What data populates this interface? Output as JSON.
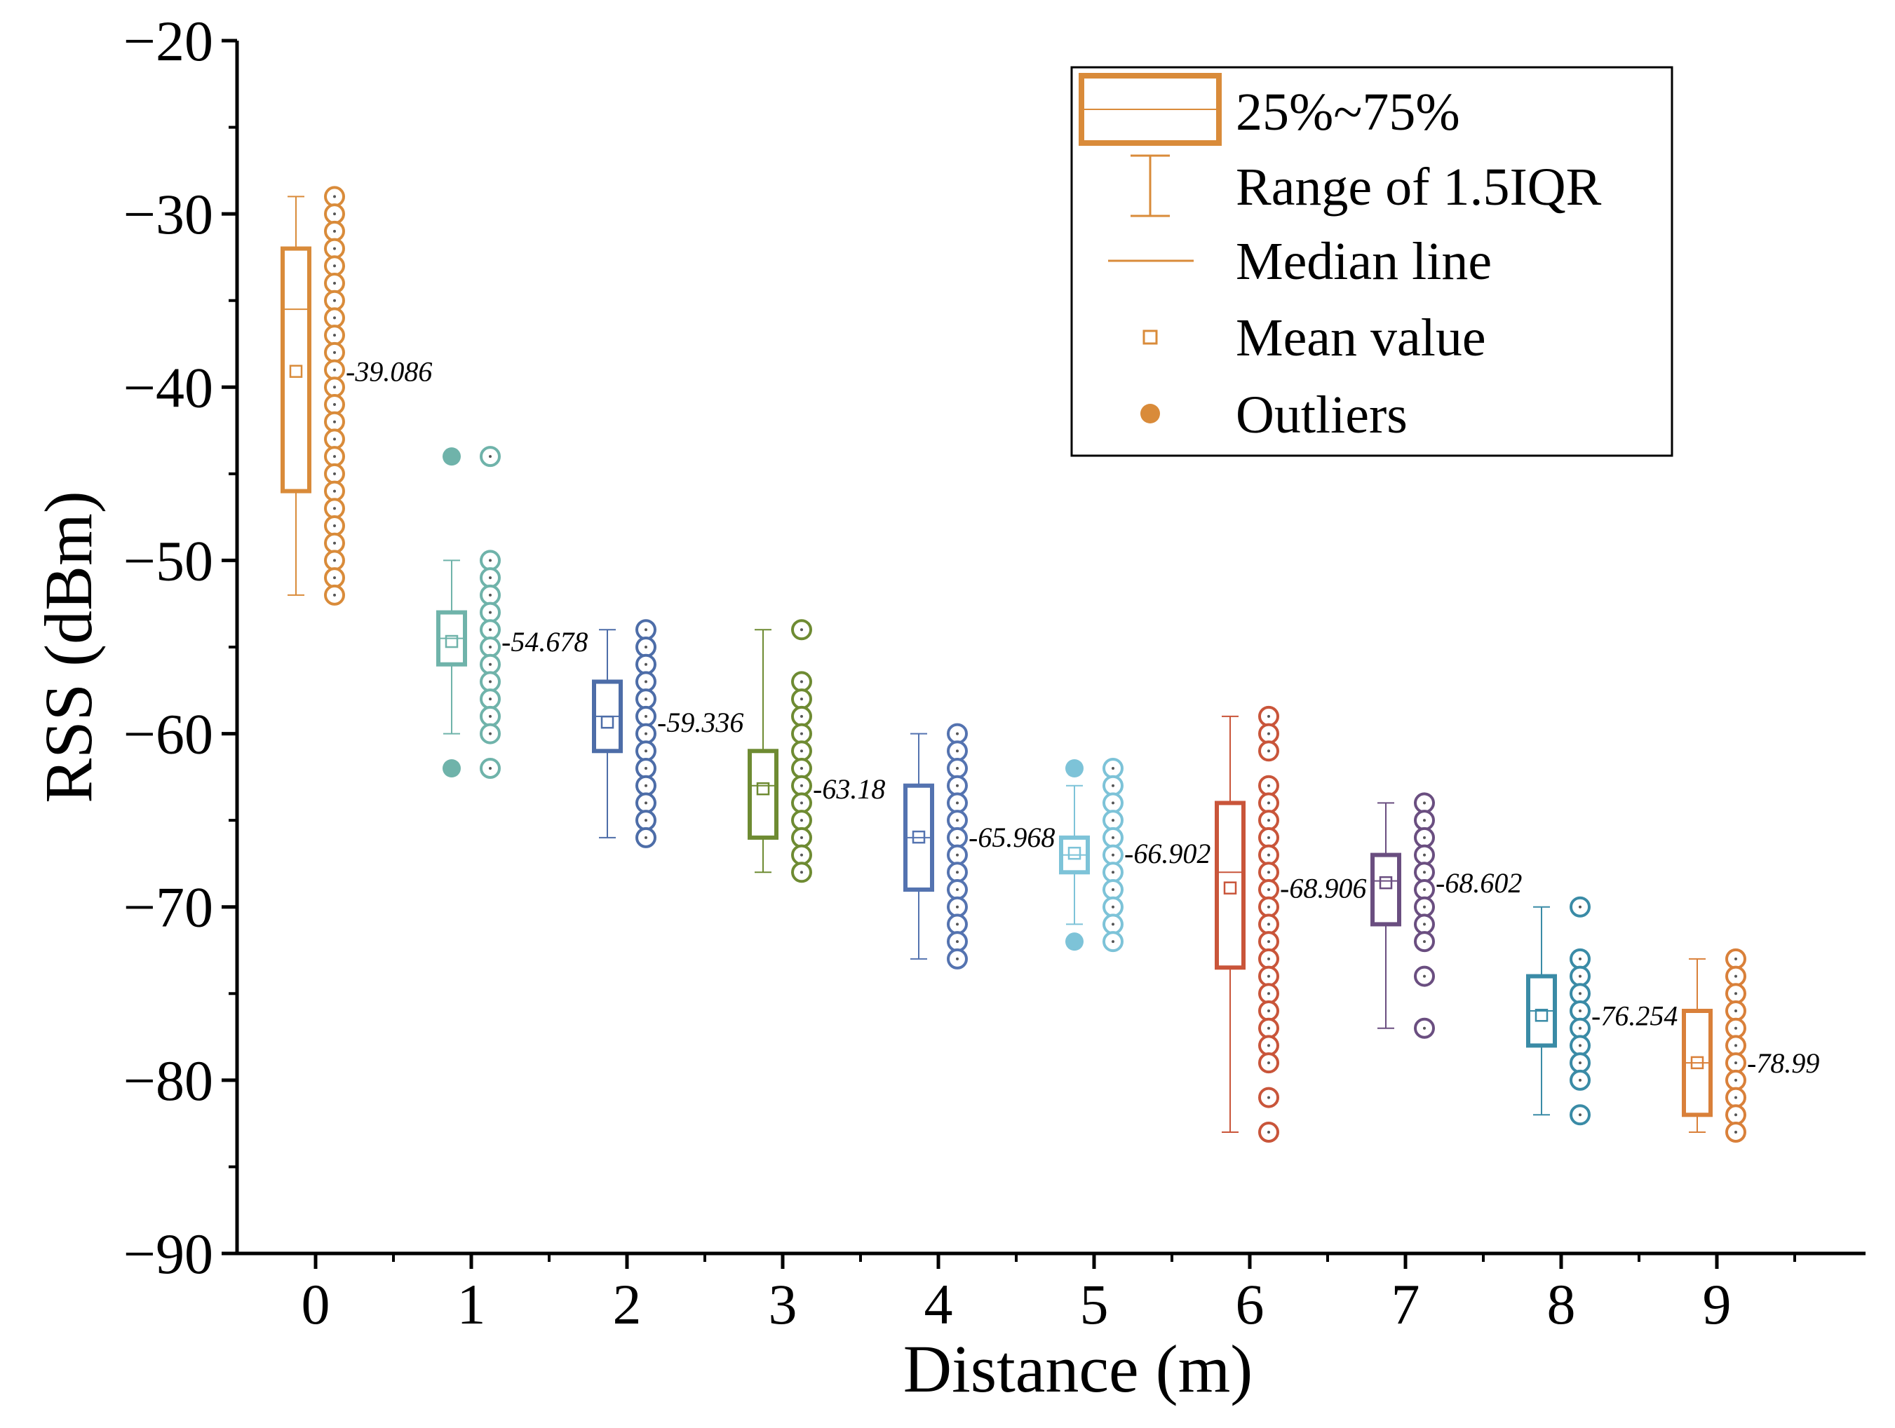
{
  "chart_data": {
    "type": "box",
    "xlabel": "Distance (m)",
    "ylabel": "RSS (dBm)",
    "ylim": [
      -90,
      -20
    ],
    "xlim": [
      -0.5,
      10
    ],
    "y_ticks": [
      -20,
      -30,
      -40,
      -50,
      -60,
      -70,
      -80,
      -90
    ],
    "y_tick_labels": [
      "−20",
      "−30",
      "−40",
      "−50",
      "−60",
      "−70",
      "−80",
      "−90"
    ],
    "x_ticks": [
      0,
      1,
      2,
      3,
      4,
      5,
      6,
      7,
      8,
      9
    ],
    "x_tick_labels": [
      "0",
      "1",
      "2",
      "3",
      "4",
      "5",
      "6",
      "7",
      "8",
      "9"
    ],
    "legend": {
      "position": "top-right",
      "entries": [
        "25%~75%",
        "Range of 1.5IQR",
        "Median line",
        "Mean value",
        "Outliers"
      ]
    },
    "series": [
      {
        "distance": 0,
        "color": "#D98B3A",
        "q1": -46,
        "median": -35.5,
        "q3": -32,
        "whisker_low": -52,
        "whisker_high": -29,
        "mean": -39.086,
        "mean_label": "-39.086",
        "outliers": [],
        "points": [
          -29,
          -30,
          -31,
          -32,
          -33,
          -34,
          -35,
          -36,
          -37,
          -38,
          -39,
          -40,
          -41,
          -42,
          -43,
          -44,
          -45,
          -46,
          -47,
          -48,
          -49,
          -50,
          -51,
          -52
        ]
      },
      {
        "distance": 1,
        "color": "#6FB3AA",
        "q1": -56,
        "median": -54.5,
        "q3": -53,
        "whisker_low": -60,
        "whisker_high": -50,
        "mean": -54.678,
        "mean_label": "-54.678",
        "outliers": [
          -44,
          -62
        ],
        "points": [
          -44,
          -50,
          -51,
          -52,
          -53,
          -54,
          -55,
          -56,
          -57,
          -58,
          -59,
          -60,
          -62
        ]
      },
      {
        "distance": 2,
        "color": "#4D6DA8",
        "q1": -61,
        "median": -59,
        "q3": -57,
        "whisker_low": -66,
        "whisker_high": -54,
        "mean": -59.336,
        "mean_label": "-59.336",
        "outliers": [],
        "points": [
          -54,
          -55,
          -56,
          -57,
          -58,
          -59,
          -60,
          -61,
          -62,
          -63,
          -64,
          -65,
          -66
        ]
      },
      {
        "distance": 3,
        "color": "#6E8B32",
        "q1": -66,
        "median": -63,
        "q3": -61,
        "whisker_low": -68,
        "whisker_high": -54,
        "mean": -63.18,
        "mean_label": "-63.18",
        "outliers": [],
        "points": [
          -54,
          -57,
          -58,
          -59,
          -60,
          -61,
          -62,
          -63,
          -64,
          -65,
          -66,
          -67,
          -68
        ]
      },
      {
        "distance": 4,
        "color": "#5473B0",
        "q1": -69,
        "median": -66,
        "q3": -63,
        "whisker_low": -73,
        "whisker_high": -60,
        "mean": -65.968,
        "mean_label": "-65.968",
        "outliers": [],
        "points": [
          -60,
          -61,
          -62,
          -63,
          -64,
          -65,
          -66,
          -67,
          -68,
          -69,
          -70,
          -71,
          -72,
          -73
        ]
      },
      {
        "distance": 5,
        "color": "#7DC3D8",
        "q1": -68,
        "median": -67,
        "q3": -66,
        "whisker_low": -71,
        "whisker_high": -63,
        "mean": -66.902,
        "mean_label": "-66.902",
        "outliers": [
          -62,
          -72
        ],
        "points": [
          -62,
          -63,
          -64,
          -65,
          -66,
          -67,
          -68,
          -69,
          -70,
          -71,
          -72
        ]
      },
      {
        "distance": 6,
        "color": "#C9553A",
        "q1": -73.5,
        "median": -68,
        "q3": -64,
        "whisker_low": -83,
        "whisker_high": -59,
        "mean": -68.906,
        "mean_label": "-68.906",
        "outliers": [],
        "points": [
          -59,
          -60,
          -61,
          -63,
          -64,
          -65,
          -66,
          -67,
          -68,
          -69,
          -70,
          -71,
          -72,
          -73,
          -74,
          -75,
          -76,
          -77,
          -78,
          -79,
          -81,
          -83
        ]
      },
      {
        "distance": 7,
        "color": "#6A4E80",
        "q1": -71,
        "median": -68.5,
        "q3": -67,
        "whisker_low": -77,
        "whisker_high": -64,
        "mean": -68.602,
        "mean_label": "-68.602",
        "outliers": [],
        "points": [
          -64,
          -65,
          -66,
          -67,
          -68,
          -69,
          -70,
          -71,
          -72,
          -74,
          -77
        ]
      },
      {
        "distance": 8,
        "color": "#3A8BA6",
        "q1": -78,
        "median": -76,
        "q3": -74,
        "whisker_low": -82,
        "whisker_high": -70,
        "mean": -76.254,
        "mean_label": "-76.254",
        "outliers": [],
        "points": [
          -70,
          -73,
          -74,
          -75,
          -76,
          -77,
          -78,
          -79,
          -80,
          -82
        ]
      },
      {
        "distance": 9,
        "color": "#D9803A",
        "q1": -82,
        "median": -79,
        "q3": -76,
        "whisker_low": -83,
        "whisker_high": -73,
        "mean": -78.99,
        "mean_label": "-78.99",
        "outliers": [],
        "points": [
          -73,
          -74,
          -75,
          -76,
          -77,
          -78,
          -79,
          -80,
          -81,
          -82,
          -83
        ]
      }
    ]
  }
}
